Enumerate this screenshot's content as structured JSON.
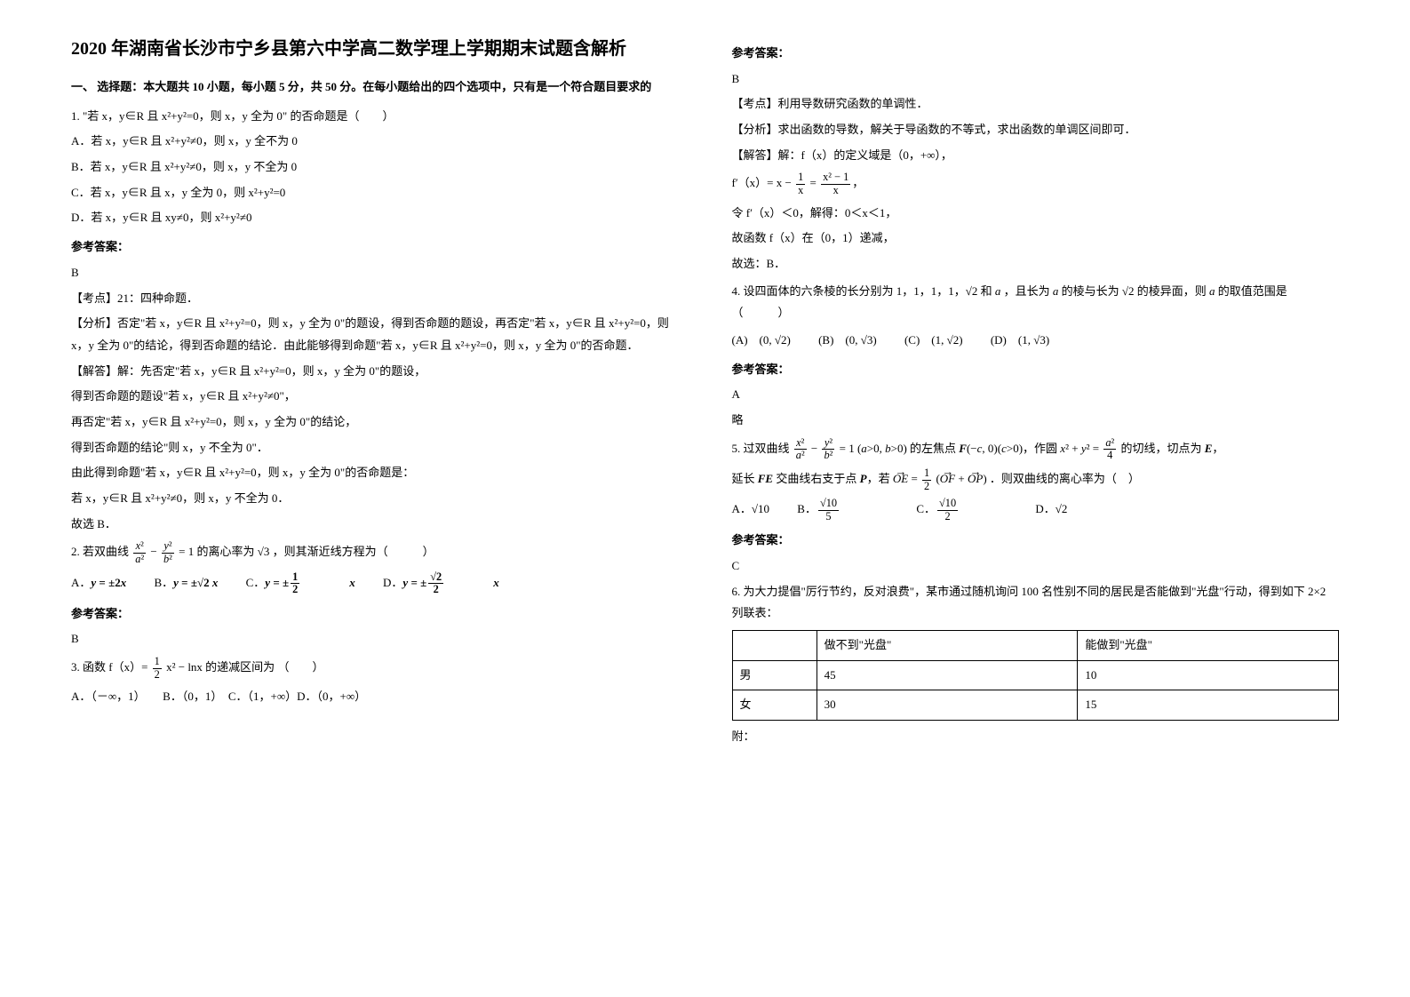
{
  "title": "2020 年湖南省长沙市宁乡县第六中学高二数学理上学期期末试题含解析",
  "section1_head": "一、 选择题：本大题共 10 小题，每小题 5 分，共 50 分。在每小题给出的四个选项中，只有是一个符合题目要求的",
  "q1": {
    "stem": "1. \"若 x，y∈R 且 x²+y²=0，则 x，y 全为 0\" 的否命题是（　　）",
    "A": "A．若 x，y∈R 且 x²+y²≠0，则 x，y 全不为 0",
    "B": "B．若 x，y∈R 且 x²+y²≠0，则 x，y 不全为 0",
    "C": "C．若 x，y∈R 且 x，y 全为 0，则 x²+y²=0",
    "D": "D．若 x，y∈R 且 xy≠0，则 x²+y²≠0",
    "ans": "B",
    "kd": "【考点】21：四种命题．",
    "fx": "【分析】否定\"若 x，y∈R 且 x²+y²=0，则 x，y 全为 0\"的题设，得到否命题的题设，再否定\"若 x，y∈R 且 x²+y²=0，则 x，y 全为 0\"的结论，得到否命题的结论．由此能够得到命题\"若 x，y∈R 且 x²+y²=0，则 x，y 全为 0\"的否命题．",
    "jd1": "【解答】解：先否定\"若 x，y∈R 且 x²+y²=0，则 x，y 全为 0\"的题设，",
    "jd2": "得到否命题的题设\"若 x，y∈R 且 x²+y²≠0\"，",
    "jd3": "再否定\"若 x，y∈R 且 x²+y²=0，则 x，y 全为 0\"的结论，",
    "jd4": "得到否命题的结论\"则 x，y 不全为 0\"．",
    "jd5": "由此得到命题\"若 x，y∈R 且 x²+y²=0，则 x，y 全为 0\"的否命题是：",
    "jd6": "若 x，y∈R 且 x²+y²≠0，则 x，y 不全为 0．",
    "jd7": "故选 B．"
  },
  "q2": {
    "ans": "B"
  },
  "q3": {
    "tail": "（　　）",
    "opts": "A．（－∞，1）　　B．（0，1）　C．（1，+∞）D．（0，+∞）",
    "ans": "B",
    "kd": "【考点】利用导数研究函数的单调性．",
    "fx": "【分析】求出函数的导数，解关于导函数的不等式，求出函数的单调区间即可．",
    "jd1": "【解答】解：f（x）的定义域是（0，+∞），",
    "jd3": "令 f′（x）＜0，解得：0＜x＜1，",
    "jd4": "故函数 f（x）在（0，1）递减，",
    "jd5": "故选：B．"
  },
  "q4": {
    "ans": "A",
    "note": "略"
  },
  "q5": {
    "ans": "C"
  },
  "q6": {
    "stem": "6. 为大力提倡\"厉行节约，反对浪费\"，某市通过随机询问 100 名性别不同的居民是否能做到\"光盘\"行动，得到如下 2×2 列联表：",
    "table": {
      "h1": "做不到\"光盘\"",
      "h2": "能做到\"光盘\"",
      "r1c0": "男",
      "r1c1": "45",
      "r1c2": "10",
      "r2c0": "女",
      "r2c1": "30",
      "r2c2": "15"
    },
    "tail": "附："
  },
  "labels": {
    "ans": "参考答案："
  }
}
